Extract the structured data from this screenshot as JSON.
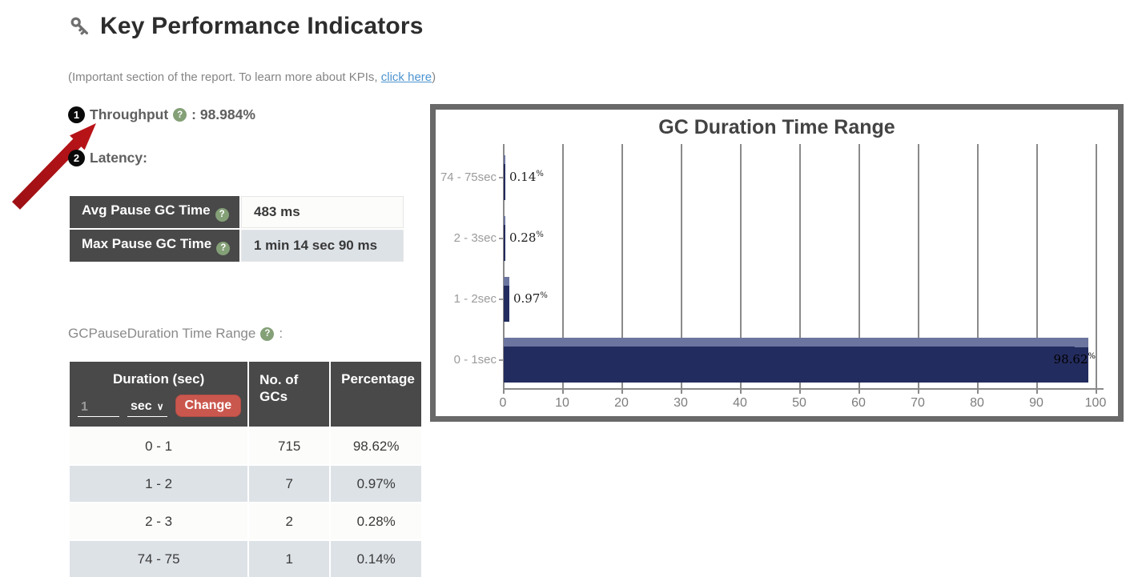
{
  "page": {
    "title": "Key Performance Indicators",
    "subtitle_prefix": "(Important section of the report. To learn more about KPIs, ",
    "subtitle_link": "click here",
    "subtitle_suffix": ")"
  },
  "icons": {
    "help_glyph": "?",
    "chevron_down_glyph": "∨"
  },
  "throughput": {
    "number": "1",
    "label": "Throughput",
    "value": ": 98.984%"
  },
  "latency": {
    "number": "2",
    "label": "Latency:",
    "rows": [
      {
        "label": "Avg Pause GC Time",
        "value": "483 ms"
      },
      {
        "label": "Max Pause GC Time",
        "value": "1 min 14 sec 90 ms"
      }
    ]
  },
  "duration_section": {
    "label": "GCPauseDuration Time Range",
    "colon": ":",
    "table": {
      "col1_header": "Duration (sec)",
      "input_value": "1",
      "unit_value": "sec",
      "change_button": "Change",
      "col2_header": "No. of GCs",
      "col3_header": "Percentage",
      "rows": [
        {
          "duration": "0 - 1",
          "count": "715",
          "pct": "98.62%"
        },
        {
          "duration": "1 - 2",
          "count": "7",
          "pct": "0.97%"
        },
        {
          "duration": "2 - 3",
          "count": "2",
          "pct": "0.28%"
        },
        {
          "duration": "74 - 75",
          "count": "1",
          "pct": "0.14%"
        }
      ]
    }
  },
  "chart_data": {
    "type": "bar",
    "orientation": "horizontal",
    "title": "GC Duration Time Range",
    "categories": [
      "74 - 75sec",
      "2 - 3sec",
      "1 - 2sec",
      "0 - 1sec"
    ],
    "values": [
      0.14,
      0.28,
      0.97,
      98.62
    ],
    "labels": [
      "0.14%",
      "0.28%",
      "0.97%",
      "98.62%"
    ],
    "x_ticks": [
      0,
      10,
      20,
      30,
      40,
      50,
      60,
      70,
      80,
      90,
      100
    ],
    "xlim": [
      0,
      100
    ],
    "grid": true,
    "legend": "none",
    "bar_color": "#232c5e",
    "bar_bevel_color": "#6b759f"
  },
  "colors": {
    "header_cell": "#494949",
    "row_even": "#fcfcfa",
    "row_odd": "#dde2e7",
    "help_icon": "#84a077",
    "change_button": "#ca574e",
    "link": "#4d94d0",
    "chart_border": "#696969",
    "annotation_arrow": "#b11318"
  }
}
